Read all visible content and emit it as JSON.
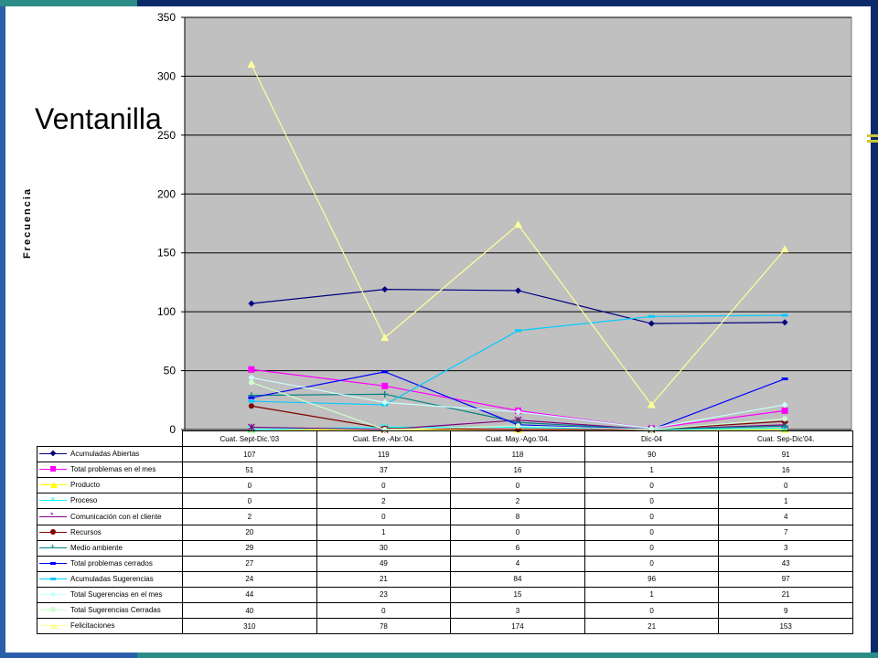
{
  "title": "Ventanilla",
  "chart_data": {
    "type": "line",
    "ylabel": "Frecuencia",
    "xlabel": "",
    "ylim": [
      0,
      350
    ],
    "yticks": [
      0,
      50,
      100,
      150,
      200,
      250,
      300,
      350
    ],
    "grid": true,
    "background": "#c0c0c0",
    "categories": [
      "Cuat. Sept-Dic.'03",
      "Cuat. Ene.-Abr.'04.",
      "Cuat. May.-Ago.'04.",
      "Dic-04",
      "Cuat. Sep-Dic'04."
    ],
    "series": [
      {
        "name": "Acumuladas Abiertas",
        "values": [
          107,
          119,
          118,
          90,
          91
        ],
        "color": "#000080",
        "marker": "diamond"
      },
      {
        "name": "Total problemas en el mes",
        "values": [
          51,
          37,
          16,
          1,
          16
        ],
        "color": "#ff00ff",
        "marker": "square"
      },
      {
        "name": "Producto",
        "values": [
          0,
          0,
          0,
          0,
          0
        ],
        "color": "#ffff00",
        "marker": "triangle"
      },
      {
        "name": "Proceso",
        "values": [
          0,
          2,
          2,
          0,
          1
        ],
        "color": "#00ffff",
        "marker": "x"
      },
      {
        "name": "Comunicación con el cliente",
        "values": [
          2,
          0,
          8,
          0,
          4
        ],
        "color": "#800080",
        "marker": "star"
      },
      {
        "name": "Recursos",
        "values": [
          20,
          1,
          0,
          0,
          7
        ],
        "color": "#800000",
        "marker": "circle"
      },
      {
        "name": "Medio ambiente",
        "values": [
          29,
          30,
          6,
          0,
          3
        ],
        "color": "#008080",
        "marker": "plus"
      },
      {
        "name": "Total problemas cerrados",
        "values": [
          27,
          49,
          4,
          0,
          43
        ],
        "color": "#0000ff",
        "marker": "dash"
      },
      {
        "name": "Acumuladas Sugerencias",
        "values": [
          24,
          21,
          84,
          96,
          97
        ],
        "color": "#00ccff",
        "marker": "dash"
      },
      {
        "name": "Total Sugerencias en el mes",
        "values": [
          44,
          23,
          15,
          1,
          21
        ],
        "color": "#ccffff",
        "marker": "diamond"
      },
      {
        "name": "Total Sugerencias Cerradas",
        "values": [
          40,
          0,
          3,
          0,
          9
        ],
        "color": "#ccffcc",
        "marker": "circle"
      },
      {
        "name": "Felicitaciones",
        "values": [
          310,
          78,
          174,
          21,
          153
        ],
        "color": "#ffff99",
        "marker": "triangle"
      }
    ],
    "table_values": [
      [
        "107",
        "119",
        "118",
        "90",
        "91"
      ],
      [
        "51",
        "37",
        "16",
        "1",
        "16"
      ],
      [
        "0",
        "0",
        "0",
        "0",
        "0"
      ],
      [
        "0",
        "2",
        "2",
        "0",
        "1"
      ],
      [
        "2",
        "0",
        "8",
        "0",
        "4"
      ],
      [
        "20",
        "1",
        "0",
        "0",
        "7"
      ],
      [
        "29",
        "30",
        "6",
        "0",
        "3"
      ],
      [
        "27",
        "49",
        "4",
        "0",
        "43"
      ],
      [
        "24",
        "21",
        "84",
        "96",
        "97"
      ],
      [
        "44",
        "23",
        "15",
        "1",
        "21"
      ],
      [
        "40",
        "0",
        "3",
        "0",
        "9"
      ],
      [
        "310",
        "78",
        "174",
        "21",
        "153"
      ]
    ]
  }
}
